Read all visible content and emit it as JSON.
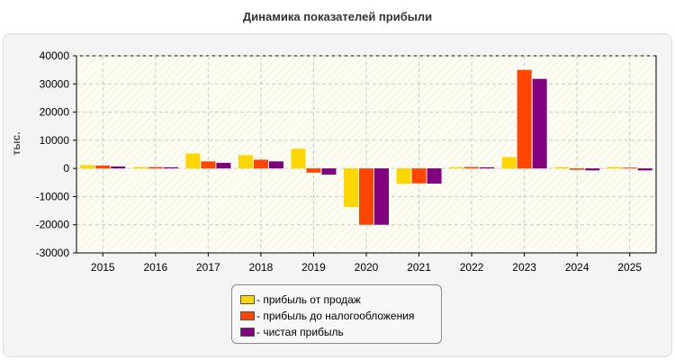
{
  "chart_data": {
    "type": "bar",
    "title": "Динамика показателей прибыли",
    "ylabel": "тыс.",
    "xlabel": "",
    "ylim": [
      -30000,
      40000
    ],
    "yticks": [
      40000,
      30000,
      20000,
      10000,
      0,
      -10000,
      -20000,
      -30000
    ],
    "grid": true,
    "legend_position": "bottom-center",
    "categories": [
      "2015",
      "2016",
      "2017",
      "2018",
      "2019",
      "2020",
      "2021",
      "2022",
      "2023",
      "2024",
      "2025"
    ],
    "series": [
      {
        "name": "- прибыль от продаж",
        "color": "#ffd700",
        "values": [
          1200,
          500,
          5300,
          4700,
          7000,
          -13700,
          -5500,
          500,
          4000,
          500,
          500
        ]
      },
      {
        "name": "- прибыль до налогообложения",
        "color": "#ff4500",
        "values": [
          1000,
          500,
          2500,
          3100,
          -1500,
          -20000,
          -5300,
          500,
          35000,
          -500,
          300
        ]
      },
      {
        "name": "- чистая прибыль",
        "color": "#800080",
        "values": [
          700,
          400,
          2000,
          2500,
          -2200,
          -20000,
          -5400,
          400,
          31800,
          -700,
          -700
        ]
      }
    ]
  }
}
